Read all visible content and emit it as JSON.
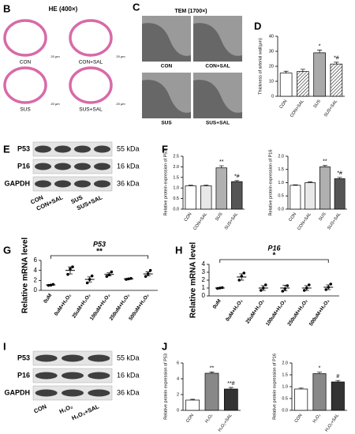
{
  "figure": {
    "letters": [
      "B",
      "C",
      "D",
      "E",
      "F",
      "G",
      "H",
      "I",
      "J"
    ],
    "he_title": "HE (400×)",
    "tem_title": "TEM (1700×)",
    "scale": "20 μm",
    "image_labels": [
      "CON",
      "CON+SAL",
      "SUS",
      "SUS+SAL"
    ],
    "blot_e": {
      "rows": [
        "P53",
        "P16",
        "GAPDH"
      ],
      "sizes": [
        "55 kDa",
        "16 kDa",
        "36 kDa"
      ],
      "lanes": [
        "CON",
        "CON+SAL",
        "SUS",
        "SUS+SAL"
      ]
    },
    "blot_i": {
      "rows": [
        "P53",
        "P16",
        "GAPDH"
      ],
      "sizes": [
        "55 kDa",
        "16 kDa",
        "36 kDa"
      ],
      "lanes": [
        "CON",
        "H₂O₂",
        "H₂O₂+SAL"
      ]
    }
  },
  "chart_data": [
    {
      "type": "bar",
      "ylabel": "Thickness of arterial wall(μm)",
      "categories": [
        "CON",
        "CON+SAL",
        "SUS",
        "SUS+SAL"
      ],
      "values": [
        15.5,
        16.5,
        29,
        21.5
      ],
      "errors": [
        1.2,
        1.5,
        1.8,
        1.2
      ],
      "ylim": [
        0,
        40
      ],
      "yticks": [
        0,
        10,
        20,
        30,
        40
      ],
      "colors": [
        "#ffffff",
        "#ffffff",
        "#aaaaaa",
        "#aaaaaa"
      ],
      "hatch": [
        false,
        true,
        false,
        true
      ],
      "annotations": [
        null,
        null,
        "*",
        "*#"
      ]
    },
    {
      "type": "bar",
      "ylabel": "Relative protein expression of P53",
      "categories": [
        "CON",
        "CON+SAL",
        "SUS",
        "SUS+SAL"
      ],
      "values": [
        1.1,
        1.1,
        1.95,
        1.3
      ],
      "errors": [
        0.03,
        0.04,
        0.1,
        0.05
      ],
      "ylim": [
        0,
        2.5
      ],
      "yticks": [
        {
          "value": 0,
          "label": "0.0"
        },
        {
          "value": 0.5,
          "label": "0.5"
        },
        {
          "value": 1,
          "label": "1.0"
        },
        {
          "value": 1.5,
          "label": "1.5"
        },
        {
          "value": 2,
          "label": "2.0"
        },
        {
          "value": 2.5,
          "label": "2.5"
        }
      ],
      "colors": [
        "#ffffff",
        "#e8e8e8",
        "#b0b0b0",
        "#555555"
      ],
      "hatch": [
        false,
        false,
        false,
        false
      ],
      "annotations": [
        null,
        null,
        "**",
        "*#"
      ]
    },
    {
      "type": "bar",
      "ylabel": "Relative protein expression of P16",
      "categories": [
        "CON",
        "CON+SAL",
        "SUS",
        "SUS+SAL"
      ],
      "values": [
        0.9,
        1.0,
        1.6,
        1.15
      ],
      "errors": [
        0.02,
        0.03,
        0.05,
        0.05
      ],
      "ylim": [
        0,
        2
      ],
      "yticks": [
        {
          "value": 0,
          "label": "0.0"
        },
        {
          "value": 0.5,
          "label": "0.5"
        },
        {
          "value": 1,
          "label": "1.0"
        },
        {
          "value": 1.5,
          "label": "1.5"
        },
        {
          "value": 2,
          "label": "2.0"
        }
      ],
      "colors": [
        "#ffffff",
        "#e8e8e8",
        "#b0b0b0",
        "#555555"
      ],
      "hatch": [
        false,
        false,
        false,
        false
      ],
      "annotations": [
        null,
        null,
        "**",
        "*#"
      ]
    },
    {
      "type": "dot",
      "title": "P53",
      "ylabel": "Relative mRNA level",
      "categories": [
        "0uM",
        "0uM+H₂O₂",
        "25uM+H₂O₂",
        "100uM+H₂O₂",
        "250uM+H₂O₂",
        "500uM+H₂O₂"
      ],
      "values": [
        1.1,
        4.0,
        2.2,
        3.2,
        2.3,
        3.3
      ],
      "errors": [
        0.05,
        0.7,
        0.5,
        0.3,
        0.1,
        0.4
      ],
      "points": [
        [
          1.0,
          1.05,
          1.2
        ],
        [
          3.2,
          4.3,
          4.7
        ],
        [
          1.5,
          2.2,
          2.9
        ],
        [
          2.8,
          3.1,
          3.7
        ],
        [
          2.2,
          2.3,
          2.4
        ],
        [
          2.8,
          3.3,
          4.0
        ]
      ],
      "ylim": [
        0,
        6
      ],
      "yticks": [
        0,
        2,
        4,
        6
      ],
      "bracket_label": "**"
    },
    {
      "type": "dot",
      "title": "P16",
      "ylabel": "Relative mRNA level",
      "categories": [
        "0uM",
        "0uM+H₂O₂",
        "25uM+H₂O₂",
        "100uM+H₂O₂",
        "250uM+H₂O₂",
        "500uM+H₂O₂"
      ],
      "values": [
        1.0,
        2.4,
        1.0,
        1.0,
        1.0,
        1.1
      ],
      "errors": [
        0.03,
        0.4,
        0.3,
        0.35,
        0.3,
        0.3
      ],
      "points": [
        [
          0.95,
          1.0,
          1.05
        ],
        [
          2.0,
          2.5,
          2.9
        ],
        [
          0.7,
          1.0,
          1.4
        ],
        [
          0.6,
          0.9,
          1.3
        ],
        [
          0.7,
          1.0,
          1.4
        ],
        [
          0.8,
          1.1,
          1.5
        ]
      ],
      "ylim": [
        0,
        4
      ],
      "yticks": [
        0,
        1,
        2,
        3,
        4
      ],
      "bracket_label": "*"
    },
    {
      "type": "bar",
      "ylabel": "Relative protein expression of P53",
      "categories": [
        "CON",
        "H₂O₂",
        "H₂O₂+SAL"
      ],
      "values": [
        1.3,
        4.7,
        2.7
      ],
      "errors": [
        0.1,
        0.15,
        0.2
      ],
      "ylim": [
        0,
        6
      ],
      "yticks": [
        0,
        2,
        4,
        6
      ],
      "colors": [
        "#ffffff",
        "#888888",
        "#333333"
      ],
      "hatch": [
        false,
        false,
        false
      ],
      "annotations": [
        null,
        "**",
        "**#"
      ]
    },
    {
      "type": "bar",
      "ylabel": "Relative protein expression of P16",
      "categories": [
        "CON",
        "H₂O₂",
        "H₂O₂+SAL"
      ],
      "values": [
        0.9,
        1.55,
        1.2
      ],
      "errors": [
        0.04,
        0.06,
        0.06
      ],
      "ylim": [
        0,
        2
      ],
      "yticks": [
        {
          "value": 0,
          "label": "0.0"
        },
        {
          "value": 0.5,
          "label": "0.5"
        },
        {
          "value": 1,
          "label": "1.0"
        },
        {
          "value": 1.5,
          "label": "1.5"
        },
        {
          "value": 2,
          "label": "2.0"
        }
      ],
      "colors": [
        "#ffffff",
        "#888888",
        "#333333"
      ],
      "hatch": [
        false,
        false,
        false
      ],
      "annotations": [
        null,
        "*",
        "#"
      ]
    }
  ]
}
